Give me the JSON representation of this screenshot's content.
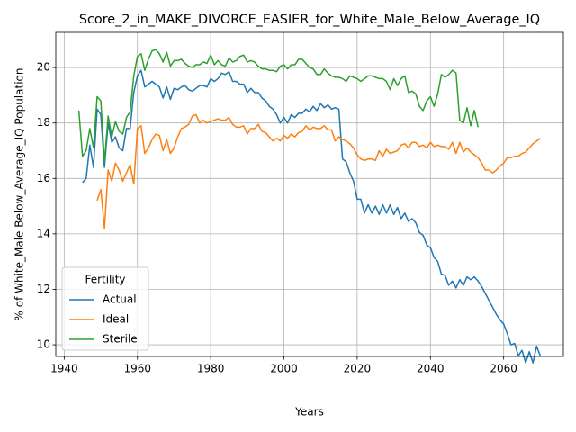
{
  "chart_data": {
    "type": "line",
    "title": "Score_2_in_MAKE_DIVORCE_EASIER_for_White_Male_Below_Average_IQ",
    "xlabel": "Years",
    "ylabel": "% of White_Male Below_Average_IQ Population",
    "legend_title": "Fertility",
    "legend_loc": "lower left",
    "grid": true,
    "xlim": [
      1937.7,
      2076.3
    ],
    "ylim": [
      9.58,
      21.27
    ],
    "xticks": [
      1940,
      1960,
      1980,
      2000,
      2020,
      2040,
      2060
    ],
    "yticks": [
      10,
      12,
      14,
      16,
      18,
      20
    ],
    "x": [
      1944,
      1945,
      1946,
      1947,
      1948,
      1949,
      1950,
      1951,
      1952,
      1953,
      1954,
      1955,
      1956,
      1957,
      1958,
      1959,
      1960,
      1961,
      1962,
      1963,
      1964,
      1965,
      1966,
      1967,
      1968,
      1969,
      1970,
      1971,
      1972,
      1973,
      1974,
      1975,
      1976,
      1977,
      1978,
      1979,
      1980,
      1981,
      1982,
      1983,
      1984,
      1985,
      1986,
      1987,
      1988,
      1989,
      1990,
      1991,
      1992,
      1993,
      1994,
      1995,
      1996,
      1997,
      1998,
      1999,
      2000,
      2001,
      2002,
      2003,
      2004,
      2005,
      2006,
      2007,
      2008,
      2009,
      2010,
      2011,
      2012,
      2013,
      2014,
      2015,
      2016,
      2017,
      2018,
      2019,
      2020,
      2021,
      2022,
      2023,
      2024,
      2025,
      2026,
      2027,
      2028,
      2029,
      2030,
      2031,
      2032,
      2033,
      2034,
      2035,
      2036,
      2037,
      2038,
      2039,
      2040,
      2041,
      2042,
      2043,
      2044,
      2045,
      2046,
      2047,
      2048,
      2049,
      2050,
      2051,
      2052,
      2053,
      2054,
      2055,
      2056,
      2057,
      2058,
      2059,
      2060,
      2061,
      2062,
      2063,
      2064,
      2065,
      2066,
      2067,
      2068,
      2069,
      2070
    ],
    "series": [
      {
        "name": "Actual",
        "color": "#1f77b4",
        "values": [
          null,
          15.85,
          16.0,
          17.2,
          16.4,
          18.5,
          18.3,
          16.4,
          18.0,
          17.3,
          17.5,
          17.1,
          17.0,
          17.8,
          17.8,
          19.1,
          19.7,
          19.9,
          19.3,
          19.4,
          19.5,
          19.4,
          19.3,
          18.9,
          19.3,
          18.85,
          19.25,
          19.2,
          19.3,
          19.35,
          19.2,
          19.15,
          19.25,
          19.35,
          19.35,
          19.3,
          19.6,
          19.5,
          19.6,
          19.8,
          19.75,
          19.85,
          19.5,
          19.5,
          19.4,
          19.4,
          19.1,
          19.25,
          19.1,
          19.1,
          18.9,
          18.8,
          18.6,
          18.5,
          18.3,
          18.0,
          18.2,
          18.0,
          18.3,
          18.2,
          18.35,
          18.35,
          18.5,
          18.4,
          18.6,
          18.45,
          18.7,
          18.55,
          18.65,
          18.5,
          18.55,
          18.5,
          16.7,
          16.6,
          16.2,
          15.9,
          15.25,
          15.25,
          14.75,
          15.05,
          14.75,
          15.0,
          14.7,
          15.05,
          14.75,
          15.05,
          14.7,
          14.95,
          14.55,
          14.75,
          14.45,
          14.55,
          14.4,
          14.05,
          13.95,
          13.6,
          13.5,
          13.15,
          13.0,
          12.55,
          12.5,
          12.15,
          12.3,
          12.05,
          12.35,
          12.15,
          12.45,
          12.35,
          12.45,
          12.3,
          12.1,
          11.85,
          11.6,
          11.35,
          11.1,
          10.9,
          10.75,
          10.4,
          10.0,
          10.05,
          9.6,
          9.8,
          9.35,
          9.75,
          9.35,
          9.95,
          9.6
        ]
      },
      {
        "name": "Ideal",
        "color": "#ff7f0e",
        "values": [
          null,
          null,
          null,
          null,
          null,
          15.2,
          15.6,
          14.2,
          16.3,
          15.9,
          16.55,
          16.3,
          15.9,
          16.2,
          16.5,
          15.8,
          17.8,
          17.9,
          16.9,
          17.1,
          17.4,
          17.6,
          17.55,
          17.0,
          17.4,
          16.9,
          17.1,
          17.5,
          17.8,
          17.85,
          17.95,
          18.25,
          18.3,
          18.0,
          18.1,
          18.0,
          18.05,
          18.1,
          18.15,
          18.1,
          18.1,
          18.2,
          17.95,
          17.85,
          17.85,
          17.9,
          17.6,
          17.8,
          17.8,
          17.95,
          17.7,
          17.65,
          17.5,
          17.35,
          17.45,
          17.35,
          17.55,
          17.45,
          17.6,
          17.5,
          17.65,
          17.7,
          17.9,
          17.75,
          17.85,
          17.8,
          17.8,
          17.9,
          17.75,
          17.75,
          17.35,
          17.5,
          17.4,
          17.35,
          17.25,
          17.1,
          16.85,
          16.7,
          16.65,
          16.7,
          16.7,
          16.65,
          17.0,
          16.8,
          17.05,
          16.9,
          16.95,
          17.0,
          17.2,
          17.25,
          17.1,
          17.3,
          17.3,
          17.15,
          17.2,
          17.1,
          17.3,
          17.15,
          17.2,
          17.15,
          17.15,
          17.05,
          17.3,
          16.9,
          17.3,
          16.95,
          17.1,
          16.95,
          16.85,
          16.75,
          16.55,
          16.3,
          16.3,
          16.2,
          16.3,
          16.45,
          16.55,
          16.75,
          16.75,
          16.8,
          16.8,
          16.9,
          16.95,
          17.1,
          17.25,
          17.35,
          17.45
        ]
      },
      {
        "name": "Sterile",
        "color": "#2ca02c",
        "values": [
          18.45,
          16.8,
          17.0,
          17.8,
          17.1,
          18.95,
          18.8,
          16.6,
          18.25,
          17.5,
          18.05,
          17.7,
          17.6,
          18.2,
          18.4,
          19.7,
          20.4,
          20.5,
          19.9,
          20.3,
          20.6,
          20.65,
          20.5,
          20.2,
          20.55,
          20.05,
          20.25,
          20.25,
          20.3,
          20.15,
          20.05,
          20.0,
          20.1,
          20.1,
          20.2,
          20.15,
          20.45,
          20.1,
          20.25,
          20.1,
          20.05,
          20.35,
          20.2,
          20.25,
          20.4,
          20.45,
          20.2,
          20.25,
          20.2,
          20.05,
          19.95,
          19.95,
          19.9,
          19.9,
          19.85,
          20.05,
          20.1,
          19.95,
          20.1,
          20.1,
          20.3,
          20.3,
          20.15,
          20.0,
          19.95,
          19.75,
          19.75,
          19.95,
          19.8,
          19.7,
          19.65,
          19.65,
          19.6,
          19.5,
          19.7,
          19.65,
          19.6,
          19.5,
          19.6,
          19.7,
          19.7,
          19.65,
          19.6,
          19.6,
          19.5,
          19.2,
          19.6,
          19.35,
          19.6,
          19.7,
          19.1,
          19.15,
          19.05,
          18.6,
          18.45,
          18.8,
          18.95,
          18.6,
          19.05,
          19.75,
          19.65,
          19.75,
          19.9,
          19.8,
          18.1,
          18.0,
          18.55,
          17.9,
          18.45,
          17.85,
          null,
          null,
          null,
          null,
          null,
          null,
          null,
          null,
          null,
          null,
          null,
          null,
          null,
          null,
          null,
          null,
          null
        ]
      }
    ]
  }
}
